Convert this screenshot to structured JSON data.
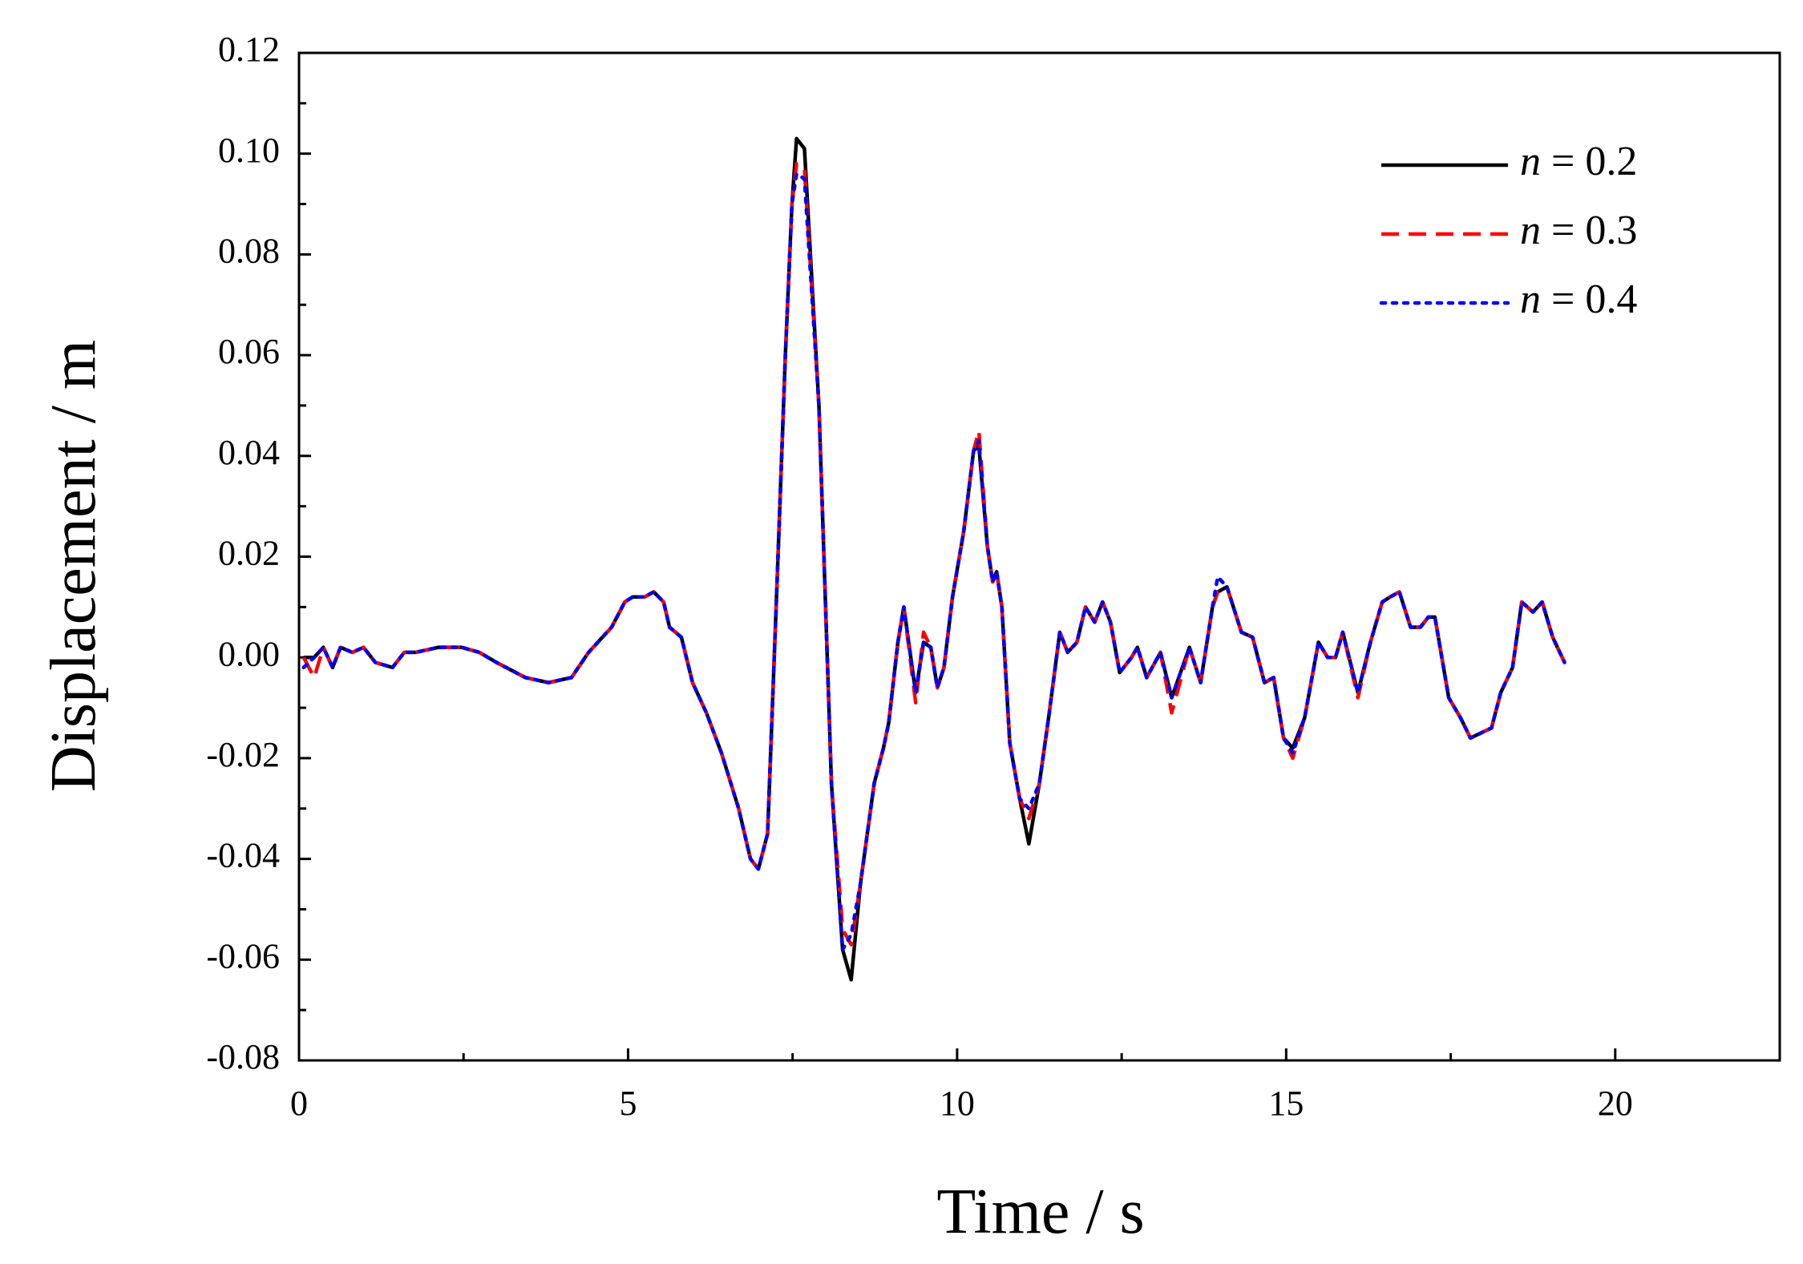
{
  "chart_data": {
    "type": "line",
    "xlabel": "Time / s",
    "ylabel": "Displacement / m",
    "xlim": [
      0,
      22.5
    ],
    "ylim": [
      -0.08,
      0.12
    ],
    "xticks": [
      0,
      5,
      10,
      15,
      20
    ],
    "yticks": [
      -0.08,
      -0.06,
      -0.04,
      -0.02,
      {
        "value": 0,
        "label": "0.00"
      },
      0.02,
      0.04,
      0.06,
      0.08,
      {
        "value": 0.1,
        "label": "0.10"
      },
      0.12
    ],
    "legend": "upper right",
    "x": [
      0.07,
      0.23,
      0.37,
      0.51,
      0.63,
      0.81,
      0.98,
      1.16,
      1.42,
      1.6,
      1.77,
      2.12,
      2.47,
      2.74,
      3.0,
      3.44,
      3.79,
      4.14,
      4.4,
      4.75,
      4.95,
      5.07,
      5.25,
      5.39,
      5.54,
      5.63,
      5.81,
      5.98,
      6.19,
      6.42,
      6.68,
      6.86,
      6.98,
      7.12,
      7.25,
      7.39,
      7.49,
      7.56,
      7.68,
      7.9,
      8.09,
      8.26,
      8.39,
      8.53,
      8.74,
      8.88,
      8.96,
      9.1,
      9.19,
      9.37,
      9.49,
      9.6,
      9.7,
      9.8,
      9.93,
      10.1,
      10.25,
      10.33,
      10.46,
      10.54,
      10.6,
      10.68,
      10.8,
      10.95,
      11.09,
      11.25,
      11.39,
      11.56,
      11.68,
      11.82,
      11.95,
      12.09,
      12.21,
      12.33,
      12.47,
      12.65,
      12.74,
      12.88,
      13.09,
      13.26,
      13.53,
      13.7,
      13.88,
      13.96,
      14.1,
      14.32,
      14.49,
      14.67,
      14.81,
      14.96,
      15.1,
      15.28,
      15.49,
      15.63,
      15.75,
      15.86,
      16.09,
      16.28,
      16.46,
      16.58,
      16.72,
      16.89,
      17.04,
      17.16,
      17.26,
      17.47,
      17.65,
      17.8,
      17.96,
      18.12,
      18.26,
      18.44,
      18.58,
      18.75,
      18.89,
      19.05,
      19.23
    ],
    "series": [
      {
        "name": "n = 0.2",
        "color": "#000000",
        "style": "solid",
        "values": [
          0,
          0,
          0.002,
          -0.002,
          0.002,
          0.001,
          0.002,
          -0.001,
          -0.002,
          0.001,
          0.001,
          0.002,
          0.002,
          0.001,
          -0.001,
          -0.004,
          -0.005,
          -0.004,
          0.001,
          0.006,
          0.011,
          0.012,
          0.012,
          0.013,
          0.011,
          0.006,
          0.004,
          -0.005,
          -0.011,
          -0.019,
          -0.03,
          -0.04,
          -0.042,
          -0.035,
          0.01,
          0.06,
          0.09,
          0.103,
          0.101,
          0.05,
          -0.025,
          -0.058,
          -0.064,
          -0.045,
          -0.025,
          -0.018,
          -0.013,
          0.003,
          0.01,
          -0.007,
          0.003,
          0.002,
          -0.006,
          -0.002,
          0.012,
          0.025,
          0.041,
          0.042,
          0.022,
          0.015,
          0.017,
          0.01,
          -0.017,
          -0.028,
          -0.037,
          -0.025,
          -0.012,
          0.005,
          0.001,
          0.003,
          0.01,
          0.007,
          0.011,
          0.007,
          -0.003,
          0,
          0.002,
          -0.004,
          0.001,
          -0.008,
          0.002,
          -0.005,
          0.01,
          0.013,
          0.014,
          0.005,
          0.004,
          -0.005,
          -0.004,
          -0.016,
          -0.018,
          -0.012,
          0.003,
          0,
          0,
          0.005,
          -0.007,
          0.003,
          0.011,
          0.012,
          0.013,
          0.006,
          0.006,
          0.008,
          0.008,
          -0.008,
          -0.012,
          -0.016,
          -0.015,
          -0.014,
          -0.007,
          -0.002,
          0.011,
          0.009,
          0.011,
          0.004,
          -0.001
        ]
      },
      {
        "name": "n = 0.3",
        "color": "#ff0000",
        "style": "dashed",
        "values": [
          0,
          -0.004,
          0.002,
          -0.002,
          0.002,
          0.001,
          0.002,
          -0.001,
          -0.002,
          0.001,
          0.001,
          0.002,
          0.002,
          0.001,
          -0.001,
          -0.004,
          -0.005,
          -0.004,
          0.001,
          0.006,
          0.011,
          0.012,
          0.012,
          0.013,
          0.011,
          0.006,
          0.004,
          -0.005,
          -0.011,
          -0.019,
          -0.03,
          -0.04,
          -0.042,
          -0.035,
          0.01,
          0.06,
          0.09,
          0.098,
          0.097,
          0.05,
          -0.025,
          -0.054,
          -0.057,
          -0.045,
          -0.025,
          -0.018,
          -0.013,
          0.003,
          0.01,
          -0.009,
          0.005,
          0.002,
          -0.006,
          -0.002,
          0.012,
          0.025,
          0.041,
          0.045,
          0.022,
          0.015,
          0.017,
          0.01,
          -0.017,
          -0.028,
          -0.032,
          -0.025,
          -0.012,
          0.005,
          0.001,
          0.003,
          0.01,
          0.007,
          0.011,
          0.007,
          -0.003,
          0,
          0.002,
          -0.004,
          0.001,
          -0.011,
          0.002,
          -0.005,
          0.01,
          0.013,
          0.014,
          0.005,
          0.004,
          -0.005,
          -0.004,
          -0.016,
          -0.02,
          -0.012,
          0.003,
          0,
          0,
          0.005,
          -0.008,
          0.003,
          0.011,
          0.012,
          0.013,
          0.006,
          0.006,
          0.008,
          0.008,
          -0.008,
          -0.012,
          -0.016,
          -0.015,
          -0.014,
          -0.007,
          -0.002,
          0.011,
          0.009,
          0.011,
          0.004,
          -0.001
        ]
      },
      {
        "name": "n = 0.4",
        "color": "#0000ff",
        "style": "dotted",
        "values": [
          -0.002,
          0,
          0.002,
          -0.002,
          0.002,
          0.001,
          0.002,
          -0.001,
          -0.002,
          0.001,
          0.001,
          0.002,
          0.002,
          0.001,
          -0.001,
          -0.004,
          -0.005,
          -0.004,
          0.001,
          0.006,
          0.011,
          0.012,
          0.012,
          0.013,
          0.011,
          0.006,
          0.004,
          -0.005,
          -0.011,
          -0.019,
          -0.03,
          -0.04,
          -0.042,
          -0.035,
          0.01,
          0.06,
          0.09,
          0.096,
          0.095,
          0.05,
          -0.025,
          -0.058,
          -0.055,
          -0.045,
          -0.025,
          -0.018,
          -0.013,
          0.003,
          0.01,
          -0.007,
          0.003,
          0.002,
          -0.006,
          -0.002,
          0.012,
          0.025,
          0.041,
          0.043,
          0.022,
          0.015,
          0.017,
          0.01,
          -0.017,
          -0.028,
          -0.03,
          -0.025,
          -0.012,
          0.005,
          0.001,
          0.003,
          0.01,
          0.007,
          0.011,
          0.007,
          -0.003,
          0,
          0.002,
          -0.004,
          0.001,
          -0.008,
          0.002,
          -0.005,
          0.01,
          0.016,
          0.014,
          0.005,
          0.004,
          -0.005,
          -0.004,
          -0.016,
          -0.019,
          -0.012,
          0.003,
          0,
          0,
          0.005,
          -0.007,
          0.003,
          0.011,
          0.012,
          0.013,
          0.006,
          0.006,
          0.008,
          0.008,
          -0.008,
          -0.012,
          -0.016,
          -0.015,
          -0.014,
          -0.007,
          -0.002,
          0.011,
          0.009,
          0.011,
          0.004,
          -0.001
        ]
      }
    ]
  }
}
